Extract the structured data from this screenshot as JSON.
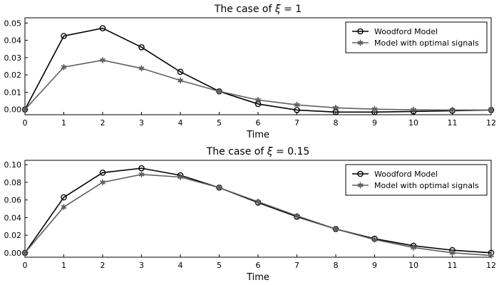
{
  "chart_data": [
    {
      "type": "line",
      "title_prefix": "The case of ",
      "title_symbol": "ξ",
      "title_suffix": " = 1",
      "xlabel": "Time",
      "ylabel": "",
      "xlim": [
        0,
        12
      ],
      "ylim": [
        -0.003,
        0.053
      ],
      "xticks": [
        0,
        1,
        2,
        3,
        4,
        5,
        6,
        7,
        8,
        9,
        10,
        11,
        12
      ],
      "yticks": [
        0.0,
        0.01,
        0.02,
        0.03,
        0.04,
        0.05
      ],
      "ytick_labels": [
        "0.00",
        "0.01",
        "0.02",
        "0.03",
        "0.04",
        "0.05"
      ],
      "grid": false,
      "legend_position": "top-right",
      "x": [
        0,
        1,
        2,
        3,
        4,
        5,
        6,
        7,
        8,
        9,
        10,
        11,
        12
      ],
      "series": [
        {
          "name": "Woodford Model",
          "color": "#000000",
          "marker": "circle",
          "values": [
            0.0,
            0.0425,
            0.047,
            0.036,
            0.0218,
            0.0105,
            0.0032,
            -0.0003,
            -0.0015,
            -0.0015,
            -0.0011,
            -0.0007,
            -0.0003
          ]
        },
        {
          "name": "Model with optimal signals",
          "color": "#606060",
          "marker": "star",
          "values": [
            0.0,
            0.0245,
            0.0285,
            0.0238,
            0.0168,
            0.0105,
            0.0055,
            0.0027,
            0.001,
            0.0002,
            -0.0002,
            -0.0003,
            -0.0003
          ]
        }
      ]
    },
    {
      "type": "line",
      "title_prefix": "The case of ",
      "title_symbol": "ξ",
      "title_suffix": " = 0.15",
      "xlabel": "Time",
      "ylabel": "",
      "xlim": [
        0,
        12
      ],
      "ylim": [
        -0.005,
        0.105
      ],
      "xticks": [
        0,
        1,
        2,
        3,
        4,
        5,
        6,
        7,
        8,
        9,
        10,
        11,
        12
      ],
      "yticks": [
        0.0,
        0.02,
        0.04,
        0.06,
        0.08,
        0.1
      ],
      "ytick_labels": [
        "0.00",
        "0.02",
        "0.04",
        "0.06",
        "0.08",
        "0.10"
      ],
      "grid": false,
      "legend_position": "top-right",
      "x": [
        0,
        1,
        2,
        3,
        4,
        5,
        6,
        7,
        8,
        9,
        10,
        11,
        12
      ],
      "series": [
        {
          "name": "Woodford Model",
          "color": "#000000",
          "marker": "circle",
          "values": [
            0.0,
            0.063,
            0.091,
            0.096,
            0.088,
            0.074,
            0.057,
            0.041,
            0.027,
            0.016,
            0.008,
            0.003,
            0.0
          ]
        },
        {
          "name": "Model with optimal signals",
          "color": "#606060",
          "marker": "star",
          "values": [
            0.0,
            0.052,
            0.08,
            0.089,
            0.086,
            0.074,
            0.058,
            0.042,
            0.027,
            0.015,
            0.006,
            0.0,
            -0.003
          ]
        }
      ]
    }
  ]
}
